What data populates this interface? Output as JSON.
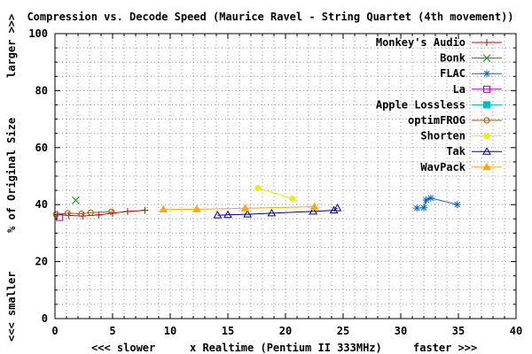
{
  "chart_data": {
    "type": "line",
    "title": "Compression vs. Decode Speed (Maurice Ravel - String Quartet (4th movement))",
    "xlabel": "x Realtime (Pentium II 333MHz)",
    "xlabel_left": "<<< slower",
    "xlabel_right": "faster >>>",
    "ylabel": "% of Original Size",
    "ylabel_top": "larger >>>",
    "ylabel_bottom": "<<< smaller",
    "xlim": [
      0,
      40
    ],
    "ylim": [
      0,
      100
    ],
    "x_ticks": [
      0,
      5,
      10,
      15,
      20,
      25,
      30,
      35,
      40
    ],
    "y_ticks": [
      0,
      20,
      40,
      60,
      80,
      100
    ],
    "grid": true,
    "legend_position": "top-right",
    "series": [
      {
        "name": "Monkey's Audio",
        "color": "#cc0000",
        "marker": "plus",
        "points": [
          [
            0.2,
            36.5
          ],
          [
            1.2,
            36.2
          ],
          [
            2.4,
            36.0
          ],
          [
            3.8,
            36.4
          ],
          [
            5.0,
            37.0
          ],
          [
            6.3,
            37.6
          ],
          [
            7.8,
            38.0
          ]
        ]
      },
      {
        "name": "Bonk",
        "color": "#009900",
        "marker": "cross",
        "points": [
          [
            1.8,
            41.5
          ]
        ]
      },
      {
        "name": "FLAC",
        "color": "#0066cc",
        "marker": "star",
        "points": [
          [
            31.4,
            38.8
          ],
          [
            32.0,
            38.9
          ],
          [
            32.2,
            41.6
          ],
          [
            32.6,
            42.3
          ],
          [
            34.9,
            40.0
          ]
        ]
      },
      {
        "name": "La",
        "color": "#aa00aa",
        "marker": "square-open",
        "points": [
          [
            0.4,
            35.5
          ]
        ]
      },
      {
        "name": "Apple Lossless",
        "color": "#00bbbb",
        "marker": "square-filled",
        "points": []
      },
      {
        "name": "optimFROG",
        "color": "#aa5500",
        "marker": "circle-open",
        "points": [
          [
            0.1,
            36.6
          ],
          [
            1.1,
            37.0
          ],
          [
            2.3,
            36.8
          ],
          [
            3.1,
            37.2
          ],
          [
            4.9,
            37.5
          ]
        ]
      },
      {
        "name": "Shorten",
        "color": "#eeee00",
        "marker": "circle-filled",
        "points": [
          [
            17.6,
            45.8
          ],
          [
            20.6,
            42.1
          ]
        ]
      },
      {
        "name": "Tak",
        "color": "#000099",
        "marker": "triangle-open",
        "points": [
          [
            14.1,
            36.3
          ],
          [
            15.0,
            36.4
          ],
          [
            16.7,
            36.6
          ],
          [
            18.8,
            37.0
          ],
          [
            22.4,
            37.6
          ],
          [
            24.2,
            38.0
          ],
          [
            24.5,
            38.8
          ]
        ]
      },
      {
        "name": "WavPack",
        "color": "#ffaa00",
        "marker": "triangle-filled",
        "points": [
          [
            9.4,
            38.3
          ],
          [
            12.3,
            38.4
          ],
          [
            16.5,
            38.7
          ],
          [
            22.5,
            39.3
          ]
        ]
      }
    ]
  }
}
